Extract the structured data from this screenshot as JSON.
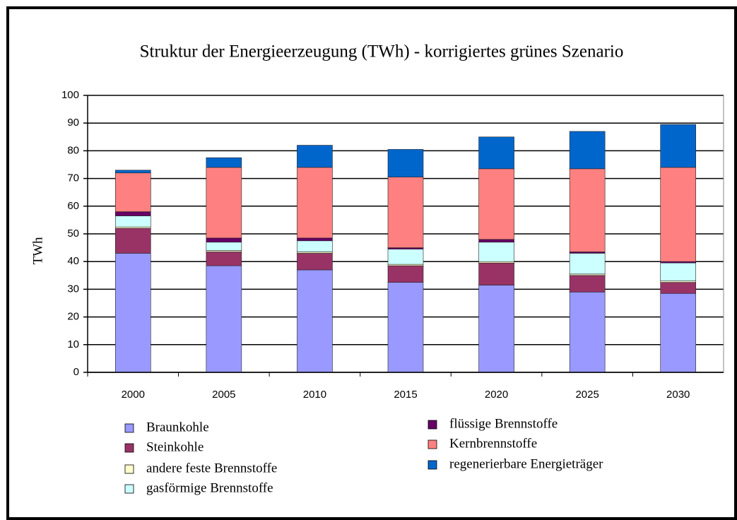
{
  "chart_data": {
    "type": "stacked_bar",
    "title": "Struktur der Energieerzeugung (TWh) - korrigiertes grünes Szenario",
    "y_label": "TWh",
    "categories": [
      "2000",
      "2005",
      "2010",
      "2015",
      "2020",
      "2025",
      "2030"
    ],
    "series": [
      {
        "name": "Braunkohle",
        "color": "#9999ff",
        "values": [
          43,
          38.5,
          37,
          32.5,
          31.5,
          29,
          28.5
        ]
      },
      {
        "name": "Steinkohle",
        "color": "#993366",
        "values": [
          9,
          5,
          6,
          6,
          8,
          6,
          4
        ]
      },
      {
        "name": "andere feste Brennstoffe",
        "color": "#ffffcc",
        "values": [
          0.5,
          0.5,
          0.5,
          0.5,
          0.5,
          0.5,
          0.5
        ]
      },
      {
        "name": "gasförmige Brennstoffe",
        "color": "#ccffff",
        "values": [
          4,
          3,
          4,
          5.5,
          7,
          7.5,
          6.5
        ]
      },
      {
        "name": "flüssige Brennstoffe",
        "color": "#660066",
        "values": [
          1.5,
          1.5,
          1,
          0.5,
          1,
          0.5,
          0.5
        ]
      },
      {
        "name": "Kernbrennstoffe",
        "color": "#ff8080",
        "values": [
          14,
          25.5,
          25.5,
          25.5,
          25.5,
          30,
          34
        ]
      },
      {
        "name": "regenerierbare Energieträger",
        "color": "#0066cc",
        "values": [
          1,
          3.5,
          8,
          10,
          11.5,
          13.5,
          15.5
        ]
      }
    ],
    "ylim": [
      0,
      100
    ],
    "yticks": [
      0,
      10,
      20,
      30,
      40,
      50,
      60,
      70,
      80,
      90,
      100
    ],
    "grid": true
  }
}
